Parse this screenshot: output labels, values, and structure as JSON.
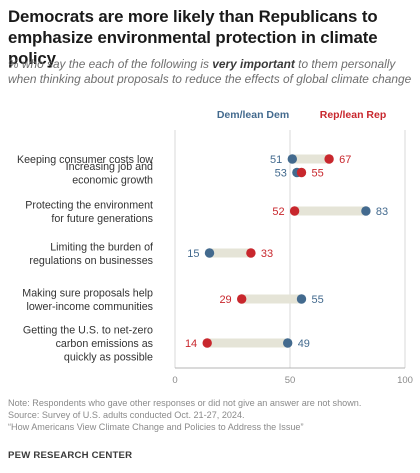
{
  "title": "Democrats are more likely than Republicans to emphasize environmental protection in climate policy",
  "subtitle": {
    "before": "% who say the each of the following is ",
    "emphasis": "very important",
    "after": " to them personally when thinking about proposals to reduce the effects of global climate change"
  },
  "chart_data": {
    "type": "dot",
    "xlim": [
      0,
      100
    ],
    "x_ticks": [
      "0",
      "50",
      "100"
    ],
    "grid": true,
    "legend_placement": "top-right",
    "categories": [
      [
        "Keeping consumer costs low"
      ],
      [
        "Increasing job and",
        "economic growth"
      ],
      [
        "Protecting the environment",
        "for future generations"
      ],
      [
        "Limiting the burden of",
        "regulations on businesses"
      ],
      [
        "Making sure proposals help",
        "lower-income communities"
      ],
      [
        "Getting the U.S. to net-zero",
        "carbon emissions as",
        "quickly as possible"
      ]
    ],
    "series": [
      {
        "name": "Dem/lean Dem",
        "color": "#436a8e",
        "values": [
          51,
          53,
          83,
          15,
          55,
          49
        ]
      },
      {
        "name": "Rep/lean Rep",
        "color": "#c8272d",
        "values": [
          67,
          55,
          52,
          33,
          29,
          14
        ]
      }
    ]
  },
  "notes": [
    "Note: Respondents who gave other responses or did not give an answer are not shown.",
    "Source: Survey of U.S. adults conducted Oct. 21-27, 2024.",
    "“How Americans View Climate Change and Policies to Address the Issue”"
  ],
  "brand": "PEW RESEARCH CENTER"
}
